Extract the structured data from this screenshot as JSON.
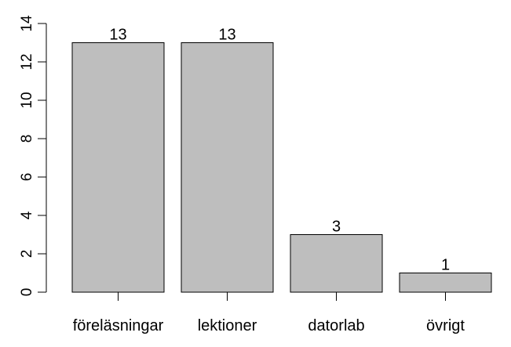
{
  "chart_data": {
    "type": "bar",
    "title": "",
    "xlabel": "",
    "ylabel": "",
    "categories": [
      "föreläsningar",
      "lektioner",
      "datorlab",
      "övrigt"
    ],
    "values": [
      13,
      13,
      3,
      1
    ],
    "data_labels": [
      "13",
      "13",
      "3",
      "1"
    ],
    "ylim": [
      0,
      14
    ],
    "yticks": [
      0,
      2,
      4,
      6,
      8,
      10,
      12,
      14
    ],
    "ytick_labels": [
      "0",
      "2",
      "4",
      "6",
      "8",
      "10",
      "12",
      "14"
    ],
    "grid": false,
    "legend": "none",
    "colors": {
      "bar_fill": "#bebebe",
      "bar_stroke": "#000000",
      "axis": "#000000"
    }
  }
}
